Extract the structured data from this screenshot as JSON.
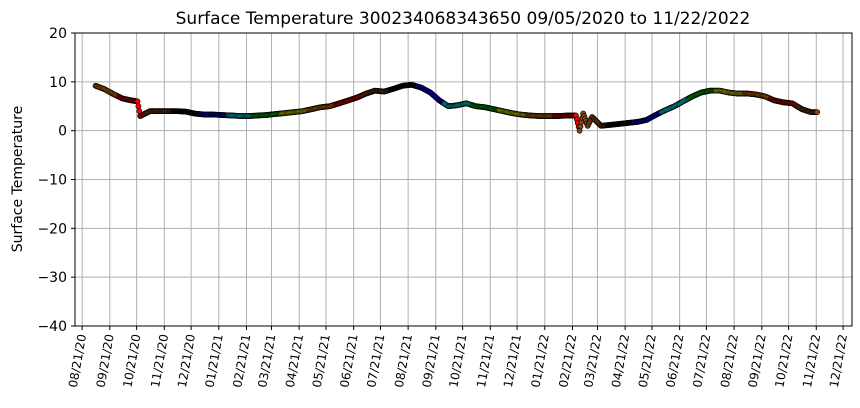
{
  "chart_data": {
    "type": "scatter",
    "title": "Surface Temperature 300234068343650  09/05/2020 to 11/22/2022",
    "ylabel": "Surface Temperature",
    "xlabel": "",
    "ylim": [
      -40,
      20
    ],
    "yticks": [
      "20",
      "10",
      "0",
      "−10",
      "−20",
      "−30",
      "−40"
    ],
    "ytick_values": [
      20,
      10,
      0,
      -10,
      -20,
      -30,
      -40
    ],
    "xlim": [
      "08/13/2020",
      "12/31/2022"
    ],
    "xticks": [
      "08/21/20",
      "09/21/20",
      "10/21/20",
      "11/21/20",
      "12/21/20",
      "01/21/21",
      "02/21/21",
      "03/21/21",
      "04/21/21",
      "05/21/21",
      "06/21/21",
      "07/21/21",
      "08/21/21",
      "09/21/21",
      "10/21/21",
      "11/21/21",
      "12/21/21",
      "01/21/22",
      "02/21/22",
      "03/21/22",
      "04/21/22",
      "05/21/22",
      "06/21/22",
      "07/21/22",
      "08/21/22",
      "09/21/22",
      "10/21/22",
      "11/21/22",
      "12/21/22"
    ],
    "grid": true,
    "colors_by_month": [
      "#ff8000",
      "#ff0000",
      "#8b4513",
      "#000000",
      "#0000ff",
      "#00ffff",
      "#00cc00",
      "#ffff00"
    ],
    "x": [
      "09/05/2020",
      "09/15/2020",
      "09/25/2020",
      "10/05/2020",
      "10/15/2020",
      "10/22/2020",
      "10/25/2020",
      "11/05/2020",
      "11/15/2020",
      "11/25/2020",
      "12/05/2020",
      "12/15/2020",
      "12/25/2020",
      "01/05/2021",
      "01/15/2021",
      "01/25/2021",
      "02/05/2021",
      "02/15/2021",
      "02/25/2021",
      "03/05/2021",
      "03/15/2021",
      "03/25/2021",
      "04/05/2021",
      "04/15/2021",
      "04/25/2021",
      "05/05/2021",
      "05/15/2021",
      "05/25/2021",
      "06/05/2021",
      "06/15/2021",
      "06/25/2021",
      "07/05/2021",
      "07/15/2021",
      "07/25/2021",
      "08/05/2021",
      "08/15/2021",
      "08/25/2021",
      "09/05/2021",
      "09/15/2021",
      "09/25/2021",
      "10/05/2021",
      "10/15/2021",
      "10/25/2021",
      "11/05/2021",
      "11/15/2021",
      "11/25/2021",
      "12/05/2021",
      "12/15/2021",
      "12/25/2021",
      "01/05/2022",
      "01/15/2022",
      "01/25/2022",
      "02/05/2022",
      "02/15/2022",
      "02/25/2022",
      "03/01/2022",
      "03/05/2022",
      "03/10/2022",
      "03/15/2022",
      "03/25/2022",
      "04/05/2022",
      "04/15/2022",
      "04/25/2022",
      "05/05/2022",
      "05/15/2022",
      "05/25/2022",
      "06/05/2022",
      "06/15/2022",
      "06/25/2022",
      "07/05/2022",
      "07/15/2022",
      "07/25/2022",
      "08/05/2022",
      "08/15/2022",
      "08/25/2022",
      "09/05/2022",
      "09/15/2022",
      "09/25/2022",
      "10/05/2022",
      "10/15/2022",
      "10/25/2022",
      "11/05/2022",
      "11/15/2022",
      "11/22/2022"
    ],
    "y": [
      9.2,
      8.5,
      7.5,
      6.6,
      6.2,
      6.0,
      3.0,
      4.0,
      4.0,
      4.0,
      4.0,
      3.9,
      3.5,
      3.3,
      3.3,
      3.2,
      3.1,
      3.0,
      3.0,
      3.1,
      3.2,
      3.4,
      3.6,
      3.8,
      4.0,
      4.4,
      4.8,
      5.0,
      5.6,
      6.2,
      6.8,
      7.6,
      8.2,
      8.0,
      8.6,
      9.2,
      9.4,
      8.8,
      7.8,
      6.2,
      5.0,
      5.2,
      5.6,
      5.0,
      4.8,
      4.4,
      4.0,
      3.6,
      3.3,
      3.1,
      3.0,
      3.0,
      3.0,
      3.1,
      3.1,
      0.0,
      3.5,
      1.0,
      2.8,
      1.0,
      1.2,
      1.4,
      1.6,
      1.8,
      2.2,
      3.2,
      4.2,
      5.0,
      6.0,
      7.0,
      7.8,
      8.2,
      8.2,
      7.8,
      7.6,
      7.6,
      7.4,
      7.0,
      6.2,
      5.8,
      5.6,
      4.4,
      3.8,
      3.8
    ]
  }
}
